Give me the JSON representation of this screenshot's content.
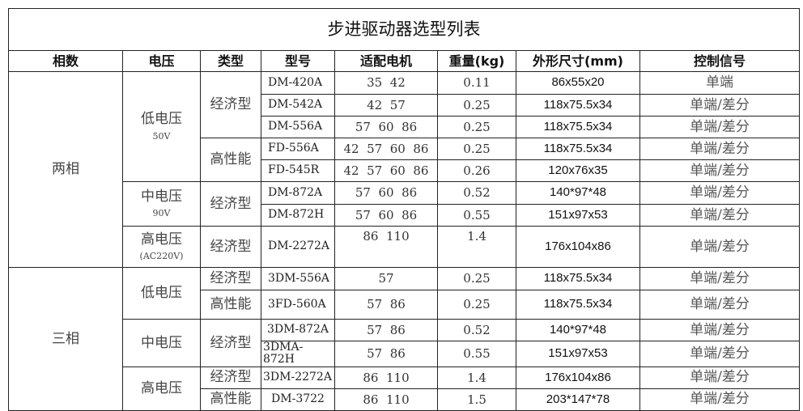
{
  "title": "步进驱动器选型列表",
  "headers": [
    "相数",
    "电压",
    "类型",
    "型号",
    "适配电机",
    "重量(kg)",
    "外形尺寸(mm)",
    "控制信号"
  ],
  "groups": {
    "two_phase": "两相",
    "three_phase": "三相",
    "low_v": "低电压",
    "low_v_sub": "50V",
    "mid_v": "中电压",
    "mid_v_sub": "90V",
    "high_v": "高电压",
    "high_v_sub": "(AC220V)",
    "economy": "经济型",
    "performance": "高性能"
  },
  "rows": [
    {
      "model": "DM-420A",
      "motors": "35  42",
      "weight": "0.11",
      "size": "86x55x20",
      "signal": "单端"
    },
    {
      "model": "DM-542A",
      "motors": "42  57",
      "weight": "0.25",
      "size": "118x75.5x34",
      "signal": "单端/差分"
    },
    {
      "model": "DM-556A",
      "motors": "57  60  86",
      "weight": "0.25",
      "size": "118x75.5x34",
      "signal": "单端/差分"
    },
    {
      "model": "FD-556A",
      "motors": "42  57  60  86",
      "weight": "0.25",
      "size": "118x75.5x34",
      "signal": "单端/差分"
    },
    {
      "model": "FD-545R",
      "motors": "42  57  60  86",
      "weight": "0.26",
      "size": "120x76x35",
      "signal": "单端/差分"
    },
    {
      "model": "DM-872A",
      "motors": "57  60  86",
      "weight": "0.52",
      "size": "140*97*48",
      "signal": "单端/差分"
    },
    {
      "model": "DM-872H",
      "motors": "57  60  86",
      "weight": "0.55",
      "size": "151x97x53",
      "signal": "单端/差分"
    },
    {
      "model": "DM-2272A",
      "motors": "86  110",
      "weight": "1.4",
      "size": "176x104x86",
      "signal": "单端/差分"
    },
    {
      "model": "3DM-556A",
      "motors": "57",
      "weight": "0.25",
      "size": "118x75.5x34",
      "signal": "单端/差分"
    },
    {
      "model": "3FD-560A",
      "motors": "57  86",
      "weight": "0.25",
      "size": "118x75.5x34",
      "signal": "单端/差分"
    },
    {
      "model": "3DM-872A",
      "motors": "57  86",
      "weight": "0.52",
      "size": "140*97*48",
      "signal": "单端/差分"
    },
    {
      "model": "3DMA-872H",
      "motors": "57  86",
      "weight": "0.55",
      "size": "151x97x53",
      "signal": "单端/差分"
    },
    {
      "model": "3DM-2272A",
      "motors": "86  110",
      "weight": "1.4",
      "size": "176x104x86",
      "signal": "单端/差分"
    },
    {
      "model": "DM-3722",
      "motors": "86  110",
      "weight": "1.5",
      "size": "203*147*78",
      "signal": "单端/差分"
    }
  ]
}
